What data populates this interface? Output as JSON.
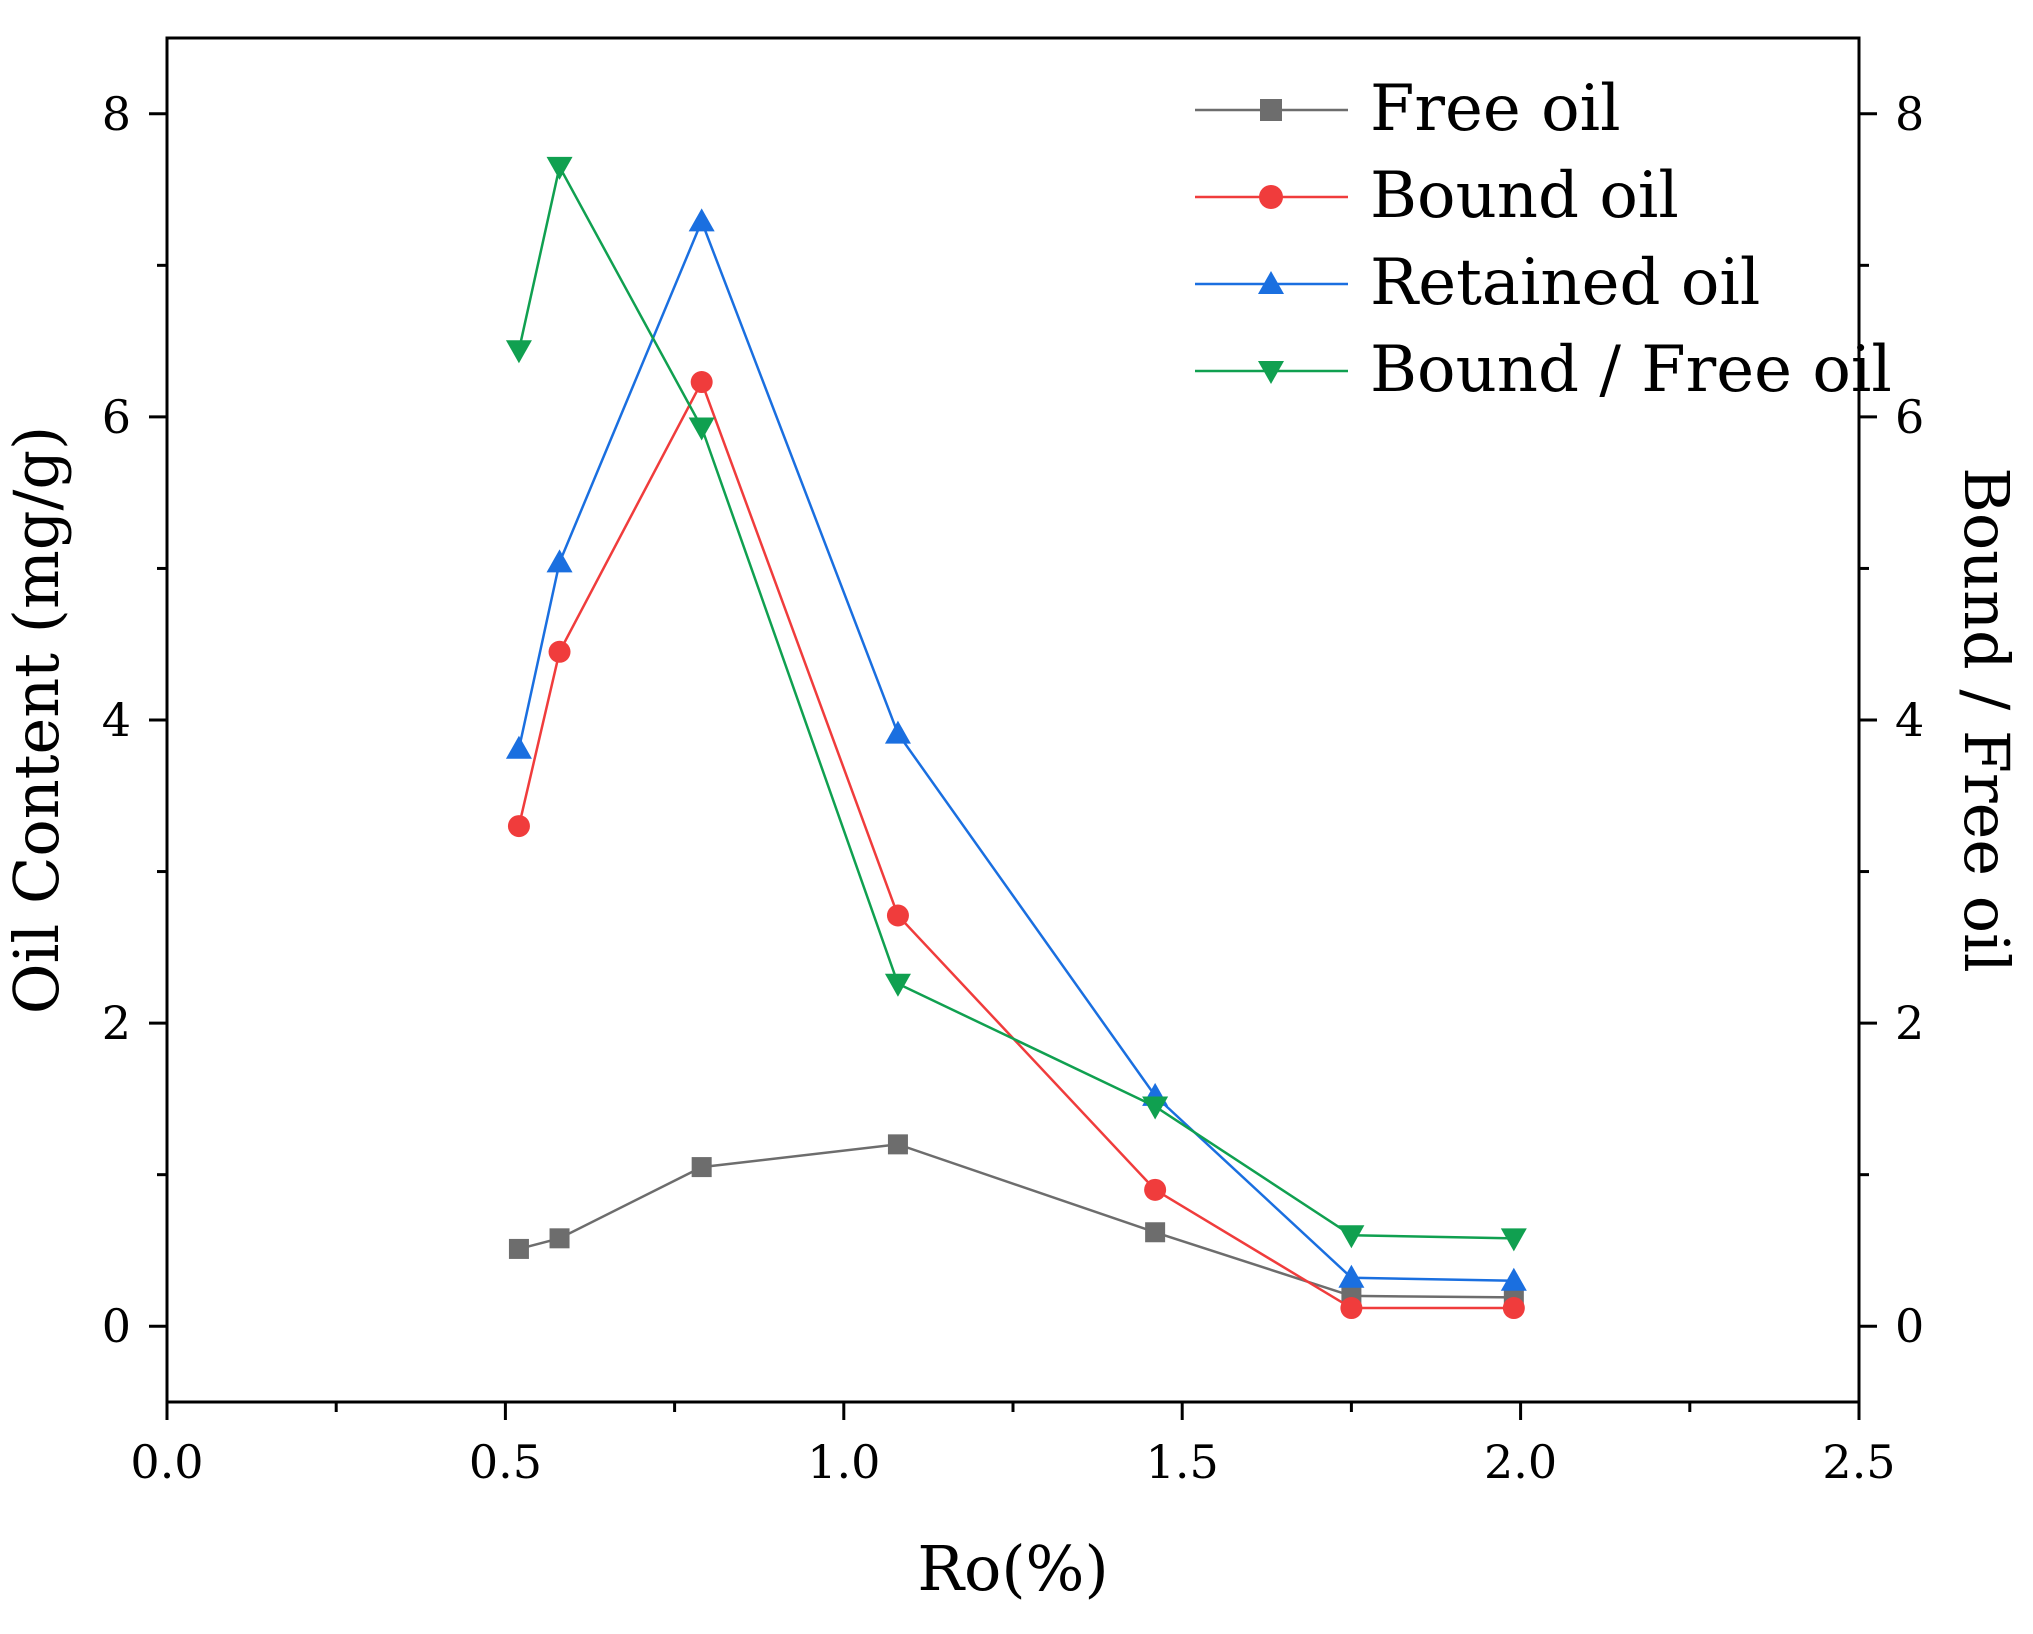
{
  "chart_data": {
    "type": "line",
    "xlabel": "Ro(%)",
    "ylabel": "Oil Content (mg/g)",
    "y2label": "Bound / Free oil",
    "xlim": [
      0.0,
      2.5
    ],
    "ylim": [
      -0.5,
      8.5
    ],
    "y2lim": [
      -0.5,
      8.5
    ],
    "xticks": [
      0.0,
      0.5,
      1.0,
      1.5,
      2.0,
      2.5
    ],
    "xtick_labels": [
      "0.0",
      "0.5",
      "1.0",
      "1.5",
      "2.0",
      "2.5"
    ],
    "yticks": [
      0,
      2,
      4,
      6,
      8
    ],
    "ytick_labels": [
      "0",
      "2",
      "4",
      "6",
      "8"
    ],
    "y2ticks": [
      0,
      2,
      4,
      6,
      8
    ],
    "y2tick_labels": [
      "0",
      "2",
      "4",
      "6",
      "8"
    ],
    "grid": false,
    "legend_position": "top-right",
    "x": [
      0.52,
      0.58,
      0.79,
      1.08,
      1.46,
      1.75,
      1.99
    ],
    "series": [
      {
        "name": "Free oil",
        "color": "#6d6d6d",
        "marker": "square",
        "axis": "left",
        "values": [
          0.51,
          0.58,
          1.05,
          1.2,
          0.62,
          0.2,
          0.19
        ]
      },
      {
        "name": "Bound oil",
        "color": "#f03c3c",
        "marker": "circle",
        "axis": "left",
        "values": [
          3.3,
          4.45,
          6.23,
          2.71,
          0.9,
          0.12,
          0.12
        ]
      },
      {
        "name": "Retained oil",
        "color": "#1a6fe0",
        "marker": "triangle-up",
        "axis": "left",
        "values": [
          3.81,
          5.04,
          7.29,
          3.91,
          1.52,
          0.32,
          0.3
        ]
      },
      {
        "name": "Bound / Free oil",
        "color": "#10a050",
        "marker": "triangle-down",
        "axis": "right",
        "values": [
          6.44,
          7.65,
          5.93,
          2.26,
          1.45,
          0.6,
          0.58
        ]
      }
    ]
  }
}
